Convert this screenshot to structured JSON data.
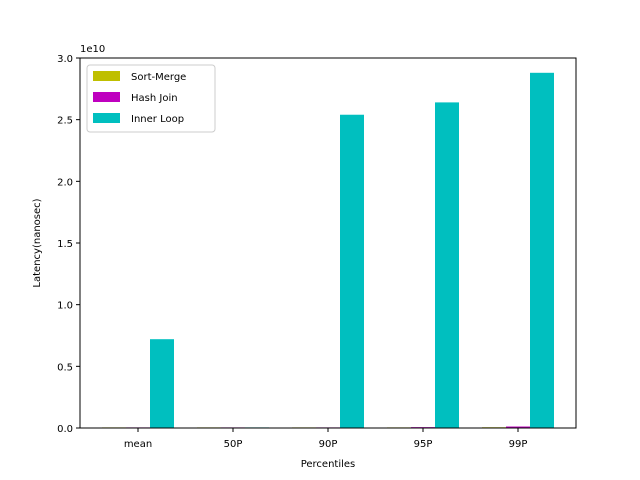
{
  "chart_data": {
    "type": "bar",
    "title": "",
    "xlabel": "Percentiles",
    "ylabel": "Latency(nanosec)",
    "y_offset_label": "1e10",
    "ylim": [
      0,
      3.0
    ],
    "y_ticks": [
      "0.0",
      "0.5",
      "1.0",
      "1.5",
      "2.0",
      "2.5",
      "3.0"
    ],
    "y_tick_values": [
      0,
      0.5,
      1.0,
      1.5,
      2.0,
      2.5,
      3.0
    ],
    "categories": [
      "mean",
      "50P",
      "90P",
      "95P",
      "99P"
    ],
    "series": [
      {
        "name": "Sort-Merge",
        "color": "#bfbf00",
        "values": [
          0.001,
          0.0005,
          0.002,
          0.003,
          0.006
        ]
      },
      {
        "name": "Hash Join",
        "color": "#bf00bf",
        "values": [
          0.002,
          0.001,
          0.004,
          0.007,
          0.012
        ]
      },
      {
        "name": "Inner Loop",
        "color": "#00bfbf",
        "values": [
          0.72,
          0.001,
          2.54,
          2.64,
          2.88
        ]
      }
    ],
    "legend_position": "top-left",
    "grid": false
  }
}
